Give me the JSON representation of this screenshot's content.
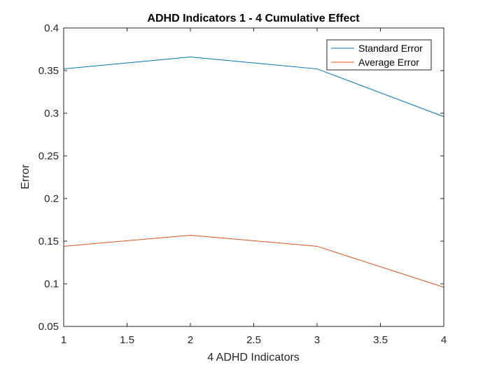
{
  "chart_data": {
    "type": "line",
    "title": "ADHD Indicators 1 - 4 Cumulative Effect",
    "xlabel": "4 ADHD Indicators",
    "ylabel": "Error",
    "xlim": [
      1,
      4
    ],
    "ylim": [
      0.05,
      0.4
    ],
    "x_ticks": [
      1,
      1.5,
      2,
      2.5,
      3,
      3.5,
      4
    ],
    "x_tick_labels": [
      "1",
      "1.5",
      "2",
      "2.5",
      "3",
      "3.5",
      "4"
    ],
    "y_ticks": [
      0.05,
      0.1,
      0.15,
      0.2,
      0.25,
      0.3,
      0.35,
      0.4
    ],
    "y_tick_labels": [
      "0.05",
      "0.1",
      "0.15",
      "0.2",
      "0.25",
      "0.3",
      "0.35",
      "0.4"
    ],
    "grid": false,
    "legend_position": "top-right",
    "x": [
      1,
      2,
      3,
      4
    ],
    "series": [
      {
        "name": "Standard Error",
        "color": "#0072BD",
        "values": [
          0.352,
          0.366,
          0.352,
          0.296
        ]
      },
      {
        "name": "Average Error",
        "color": "#D95319",
        "values": [
          0.144,
          0.157,
          0.144,
          0.096
        ]
      }
    ]
  }
}
